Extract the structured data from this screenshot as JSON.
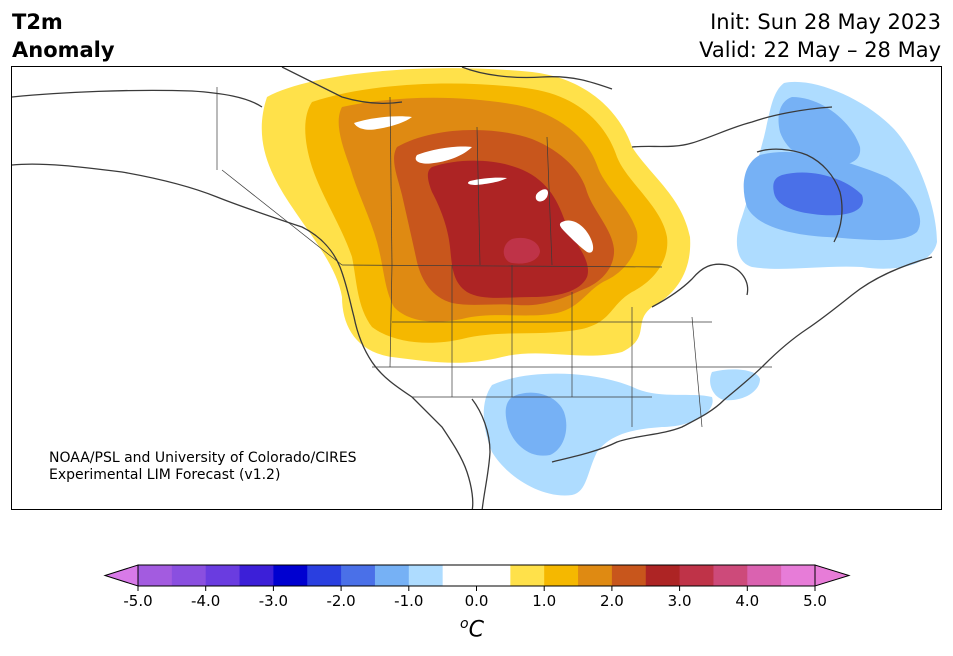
{
  "title": {
    "left_line1": "T2m",
    "left_line2": "Anomaly",
    "init": "Init: Sun 28 May 2023",
    "valid": "Valid: 22 May – 28 May"
  },
  "credit": {
    "line1": "NOAA/PSL and University of Colorado/CIRES",
    "line2": "Experimental LIM Forecast (v1.2)"
  },
  "colorbar": {
    "unit_base": "C",
    "unit_sup": "o",
    "tick_labels": [
      "-5.0",
      "-4.0",
      "-3.0",
      "-2.0",
      "-1.0",
      "0.0",
      "1.0",
      "2.0",
      "3.0",
      "4.0",
      "5.0"
    ],
    "bins": [
      {
        "min": -5.0,
        "max": -4.5,
        "color": "#a35be0"
      },
      {
        "min": -4.5,
        "max": -4.0,
        "color": "#8a4fe0"
      },
      {
        "min": -4.0,
        "max": -3.5,
        "color": "#6a3ce0"
      },
      {
        "min": -3.5,
        "max": -3.0,
        "color": "#3c1fd8"
      },
      {
        "min": -3.0,
        "max": -2.5,
        "color": "#0000d0"
      },
      {
        "min": -2.5,
        "max": -2.0,
        "color": "#2a3fe0"
      },
      {
        "min": -2.0,
        "max": -1.5,
        "color": "#4a70e8"
      },
      {
        "min": -1.5,
        "max": -1.0,
        "color": "#76b1f5"
      },
      {
        "min": -1.0,
        "max": -0.5,
        "color": "#aedcff"
      },
      {
        "min": -0.5,
        "max": 0.5,
        "color": "#ffffff"
      },
      {
        "min": 0.5,
        "max": 1.0,
        "color": "#ffe14a"
      },
      {
        "min": 1.0,
        "max": 1.5,
        "color": "#f5b800"
      },
      {
        "min": 1.5,
        "max": 2.0,
        "color": "#df8a12"
      },
      {
        "min": 2.0,
        "max": 2.5,
        "color": "#c8561c"
      },
      {
        "min": 2.5,
        "max": 3.0,
        "color": "#ad2424"
      },
      {
        "min": 3.0,
        "max": 3.5,
        "color": "#bf3348"
      },
      {
        "min": 3.5,
        "max": 4.0,
        "color": "#cd4a7a"
      },
      {
        "min": 4.0,
        "max": 4.5,
        "color": "#da62b0"
      },
      {
        "min": 4.5,
        "max": 5.0,
        "color": "#e77cd8"
      }
    ],
    "under_color": "#d87ae8",
    "over_color": "#e77cd8"
  }
}
